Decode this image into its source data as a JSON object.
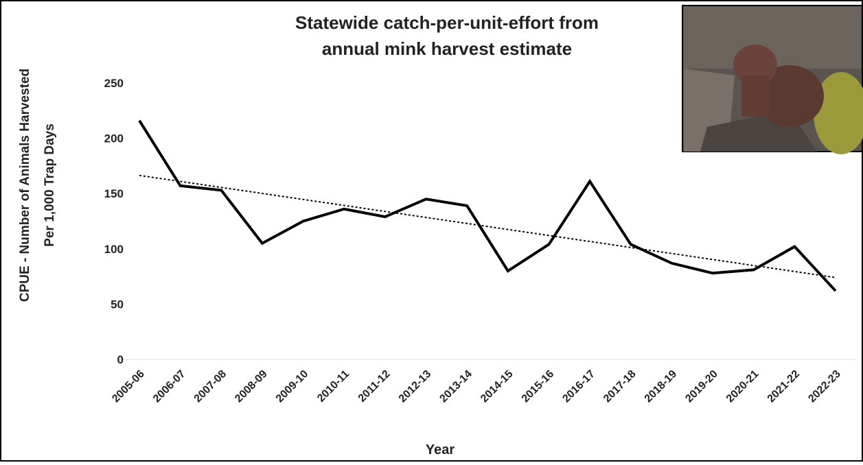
{
  "chart_data": {
    "type": "line",
    "title": [
      "Statewide catch-per-unit-effort from",
      "annual mink harvest estimate"
    ],
    "xlabel": "Year",
    "ylabel": [
      "CPUE - Number of Animals Harvested",
      "Per 1,000 Trap Days"
    ],
    "categories": [
      "2005-06",
      "2006-07",
      "2007-08",
      "2008-09",
      "2009-10",
      "2010-11",
      "2011-12",
      "2012-13",
      "2013-14",
      "2014-15",
      "2015-16",
      "2016-17",
      "2017-18",
      "2018-19",
      "2019-20",
      "2020-21",
      "2021-22",
      "2022-23"
    ],
    "values": [
      216,
      157,
      153,
      105,
      125,
      136,
      129,
      145,
      139,
      80,
      104,
      161,
      104,
      87,
      78,
      81,
      102,
      62
    ],
    "color": "#000000",
    "trendline": true,
    "ylim": [
      0,
      250
    ],
    "yticks": [
      0,
      50,
      100,
      150,
      200,
      250
    ],
    "grid": false
  }
}
